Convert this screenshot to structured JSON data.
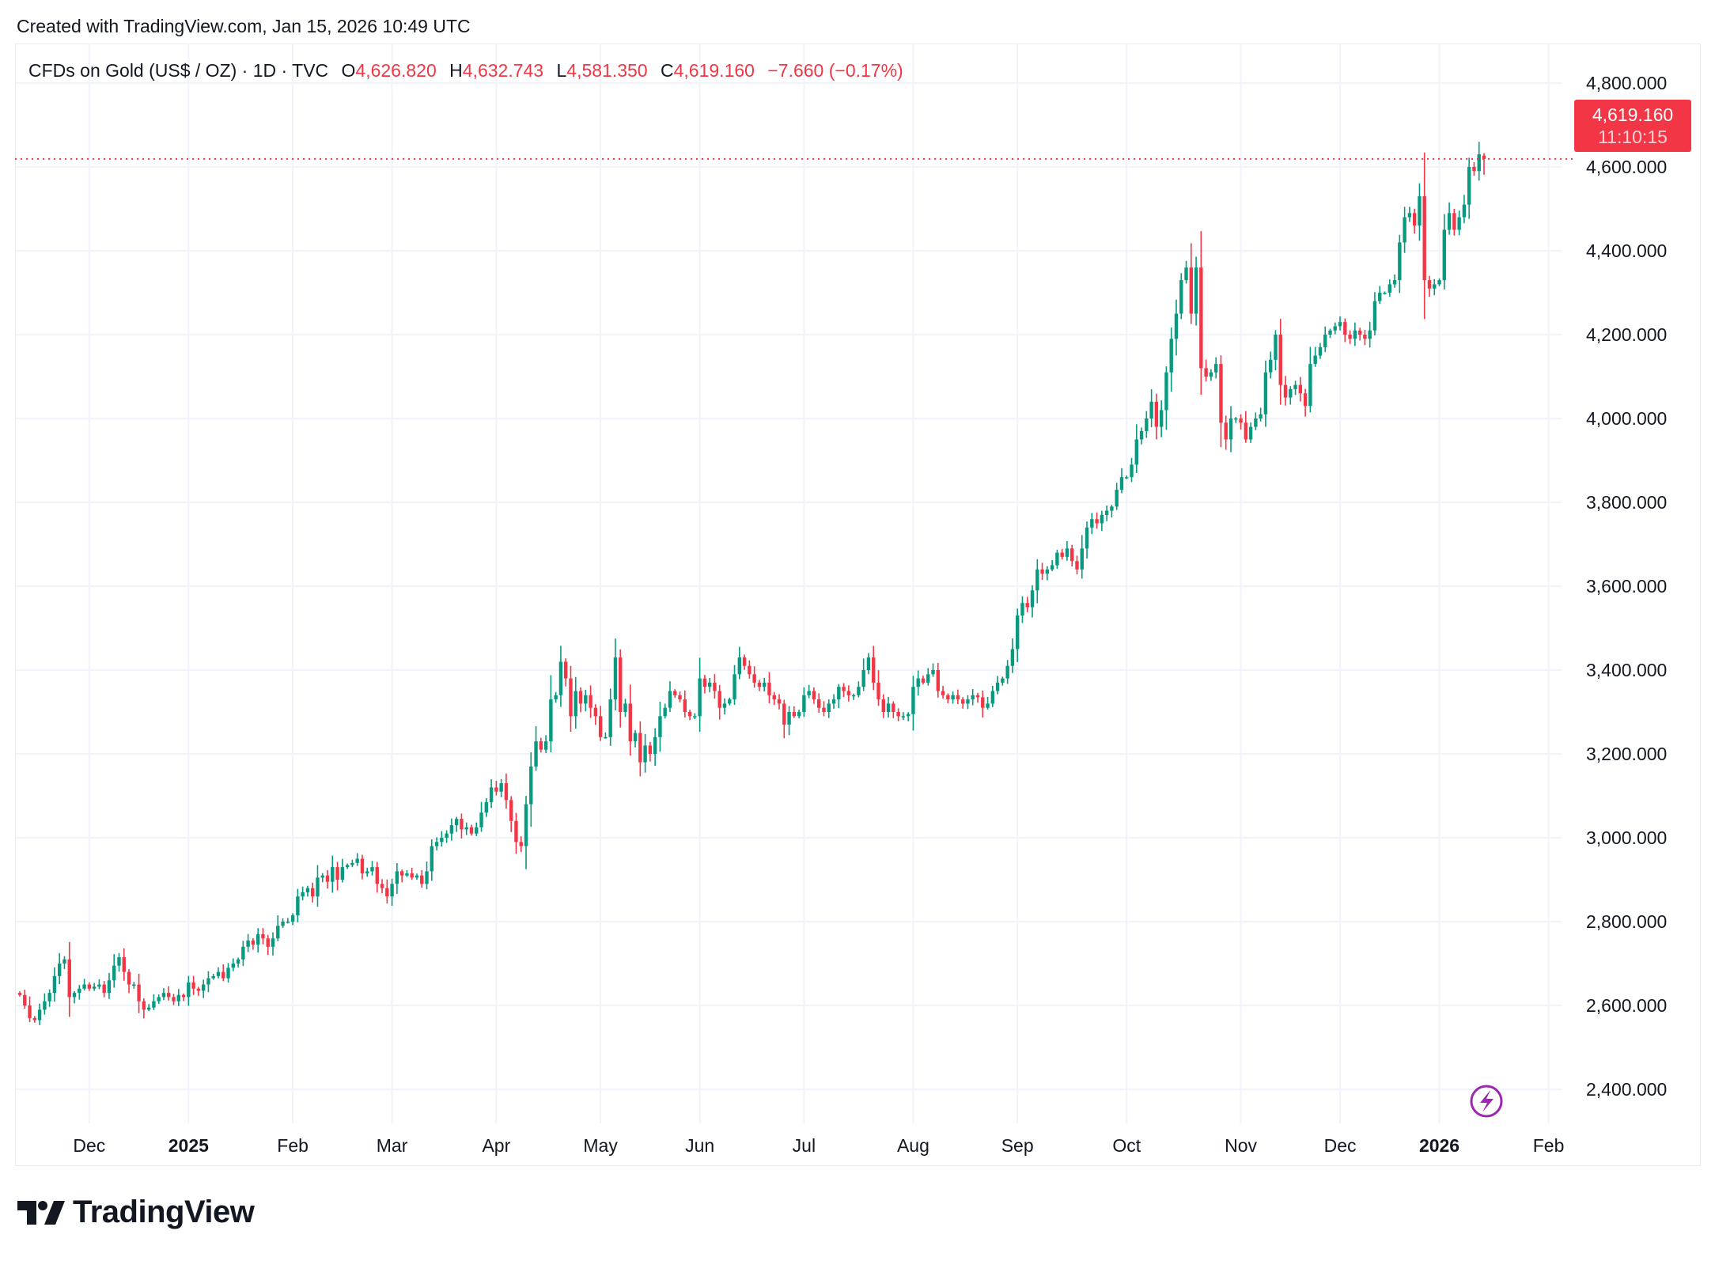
{
  "credit": "Created with TradingView.com, Jan 15, 2026 10:49 UTC",
  "legend": {
    "symbol": "CFDs on Gold (US$ / OZ) · 1D · TVC",
    "open_label": "O",
    "open": "4,626.820",
    "high_label": "H",
    "high": "4,632.743",
    "low_label": "L",
    "low": "4,581.350",
    "close_label": "C",
    "close": "4,619.160",
    "change": "−7.660 (−0.17%)"
  },
  "price_tag": {
    "price": "4,619.160",
    "countdown": "11:10:15"
  },
  "logo": {
    "text": "TradingView"
  },
  "colors": {
    "up": "#089981",
    "down": "#F23645",
    "grid": "#f0f3fa",
    "alert_icon": "#9c27b0"
  },
  "icons": {
    "alert": "lightning-circle-icon"
  },
  "chart_data": {
    "type": "candlestick",
    "interval": "1D",
    "ylim": [
      2300,
      4900
    ],
    "y_ticks": [
      "2,400.000",
      "2,600.000",
      "2,800.000",
      "3,000.000",
      "3,200.000",
      "3,400.000",
      "3,600.000",
      "3,800.000",
      "4,000.000",
      "4,200.000",
      "4,400.000",
      "4,600.000",
      "4,800.000"
    ],
    "y_tick_values": [
      2400,
      2600,
      2800,
      3000,
      3200,
      3400,
      3600,
      3800,
      4000,
      4200,
      4400,
      4600,
      4800
    ],
    "grid": true,
    "last_candle": {
      "open": 4626.82,
      "high": 4632.743,
      "low": 4581.35,
      "close": 4619.16
    },
    "current_price": 4619.16,
    "months": [
      {
        "label": "",
        "bold": false,
        "closes": [
          2625,
          2600,
          2570,
          2565,
          2590,
          2610,
          2630,
          2670,
          2700,
          2710,
          2620,
          2630,
          2640,
          2650
        ]
      },
      {
        "label": "Dec",
        "bold": false,
        "closes": [
          2640,
          2645,
          2650,
          2630,
          2660,
          2695,
          2715,
          2680,
          2650,
          2650,
          2610,
          2590,
          2595,
          2610,
          2620,
          2630,
          2620,
          2610,
          2625,
          2620
        ]
      },
      {
        "label": "2025",
        "bold": true,
        "closes": [
          2655,
          2640,
          2635,
          2650,
          2665,
          2670,
          2680,
          2665,
          2690,
          2700,
          2710,
          2740,
          2755,
          2745,
          2770,
          2760,
          2740,
          2760,
          2790,
          2800,
          2800
        ]
      },
      {
        "label": "Feb",
        "bold": false,
        "closes": [
          2815,
          2860,
          2870,
          2880,
          2860,
          2905,
          2910,
          2895,
          2930,
          2900,
          2930,
          2935,
          2940,
          2950,
          2915,
          2920,
          2930,
          2890,
          2880,
          2860
        ]
      },
      {
        "label": "Mar",
        "bold": false,
        "closes": [
          2890,
          2920,
          2910,
          2915,
          2905,
          2910,
          2890,
          2920,
          2980,
          2990,
          3000,
          3010,
          3030,
          3045,
          3020,
          3025,
          3010,
          3025,
          3060,
          3085,
          3120
        ]
      },
      {
        "label": "Apr",
        "bold": false,
        "closes": [
          3110,
          3130,
          3090,
          3040,
          2990,
          2980,
          3080,
          3170,
          3230,
          3210,
          3230,
          3330,
          3340,
          3420,
          3380,
          3290,
          3350,
          3320,
          3340,
          3310,
          3290
        ]
      },
      {
        "label": "May",
        "bold": false,
        "closes": [
          3240,
          3240,
          3330,
          3430,
          3300,
          3320,
          3230,
          3250,
          3180,
          3220,
          3200,
          3240,
          3290,
          3310,
          3350,
          3340,
          3330,
          3300,
          3290,
          3290
        ]
      },
      {
        "label": "Jun",
        "bold": false,
        "closes": [
          3380,
          3360,
          3370,
          3350,
          3310,
          3320,
          3330,
          3390,
          3430,
          3410,
          3390,
          3370,
          3360,
          3370,
          3340,
          3330,
          3320,
          3270,
          3300,
          3290,
          3300
        ]
      },
      {
        "label": "Jul",
        "bold": false,
        "closes": [
          3340,
          3350,
          3330,
          3310,
          3300,
          3320,
          3330,
          3360,
          3350,
          3340,
          3340,
          3360,
          3400,
          3430,
          3370,
          3330,
          3300,
          3320,
          3300,
          3290,
          3290,
          3295
        ]
      },
      {
        "label": "Aug",
        "bold": false,
        "closes": [
          3360,
          3380,
          3370,
          3390,
          3400,
          3350,
          3340,
          3330,
          3340,
          3330,
          3320,
          3330,
          3340,
          3335,
          3310,
          3320,
          3350,
          3370,
          3380,
          3410,
          3450
        ]
      },
      {
        "label": "Sep",
        "bold": false,
        "closes": [
          3530,
          3560,
          3550,
          3590,
          3640,
          3630,
          3640,
          3650,
          3680,
          3670,
          3690,
          3660,
          3640,
          3690,
          3740,
          3760,
          3750,
          3770,
          3780,
          3790,
          3830,
          3860
        ]
      },
      {
        "label": "Oct",
        "bold": false,
        "closes": [
          3860,
          3890,
          3950,
          3970,
          4000,
          4040,
          3980,
          4020,
          4110,
          4190,
          4250,
          4330,
          4360,
          4250,
          4360,
          4120,
          4100,
          4110,
          4130,
          3990,
          3950,
          4000,
          4000
        ]
      },
      {
        "label": "Nov",
        "bold": false,
        "closes": [
          3990,
          3950,
          3980,
          4000,
          4010,
          4110,
          4140,
          4200,
          4080,
          4050,
          4070,
          4080,
          4060,
          4030,
          4130,
          4150,
          4170,
          4200,
          4210,
          4220
        ]
      },
      {
        "label": "Dec",
        "bold": false,
        "closes": [
          4230,
          4200,
          4190,
          4210,
          4200,
          4190,
          4210,
          4280,
          4300,
          4300,
          4320,
          4330,
          4420,
          4480,
          4490,
          4460,
          4530,
          4330,
          4310,
          4320
        ]
      },
      {
        "label": "2026",
        "bold": true,
        "closes": [
          4330,
          4450,
          4490,
          4450,
          4480,
          4510,
          4600,
          4590,
          4630,
          4619.16
        ]
      },
      {
        "label": "Feb",
        "bold": false,
        "closes": []
      }
    ]
  }
}
